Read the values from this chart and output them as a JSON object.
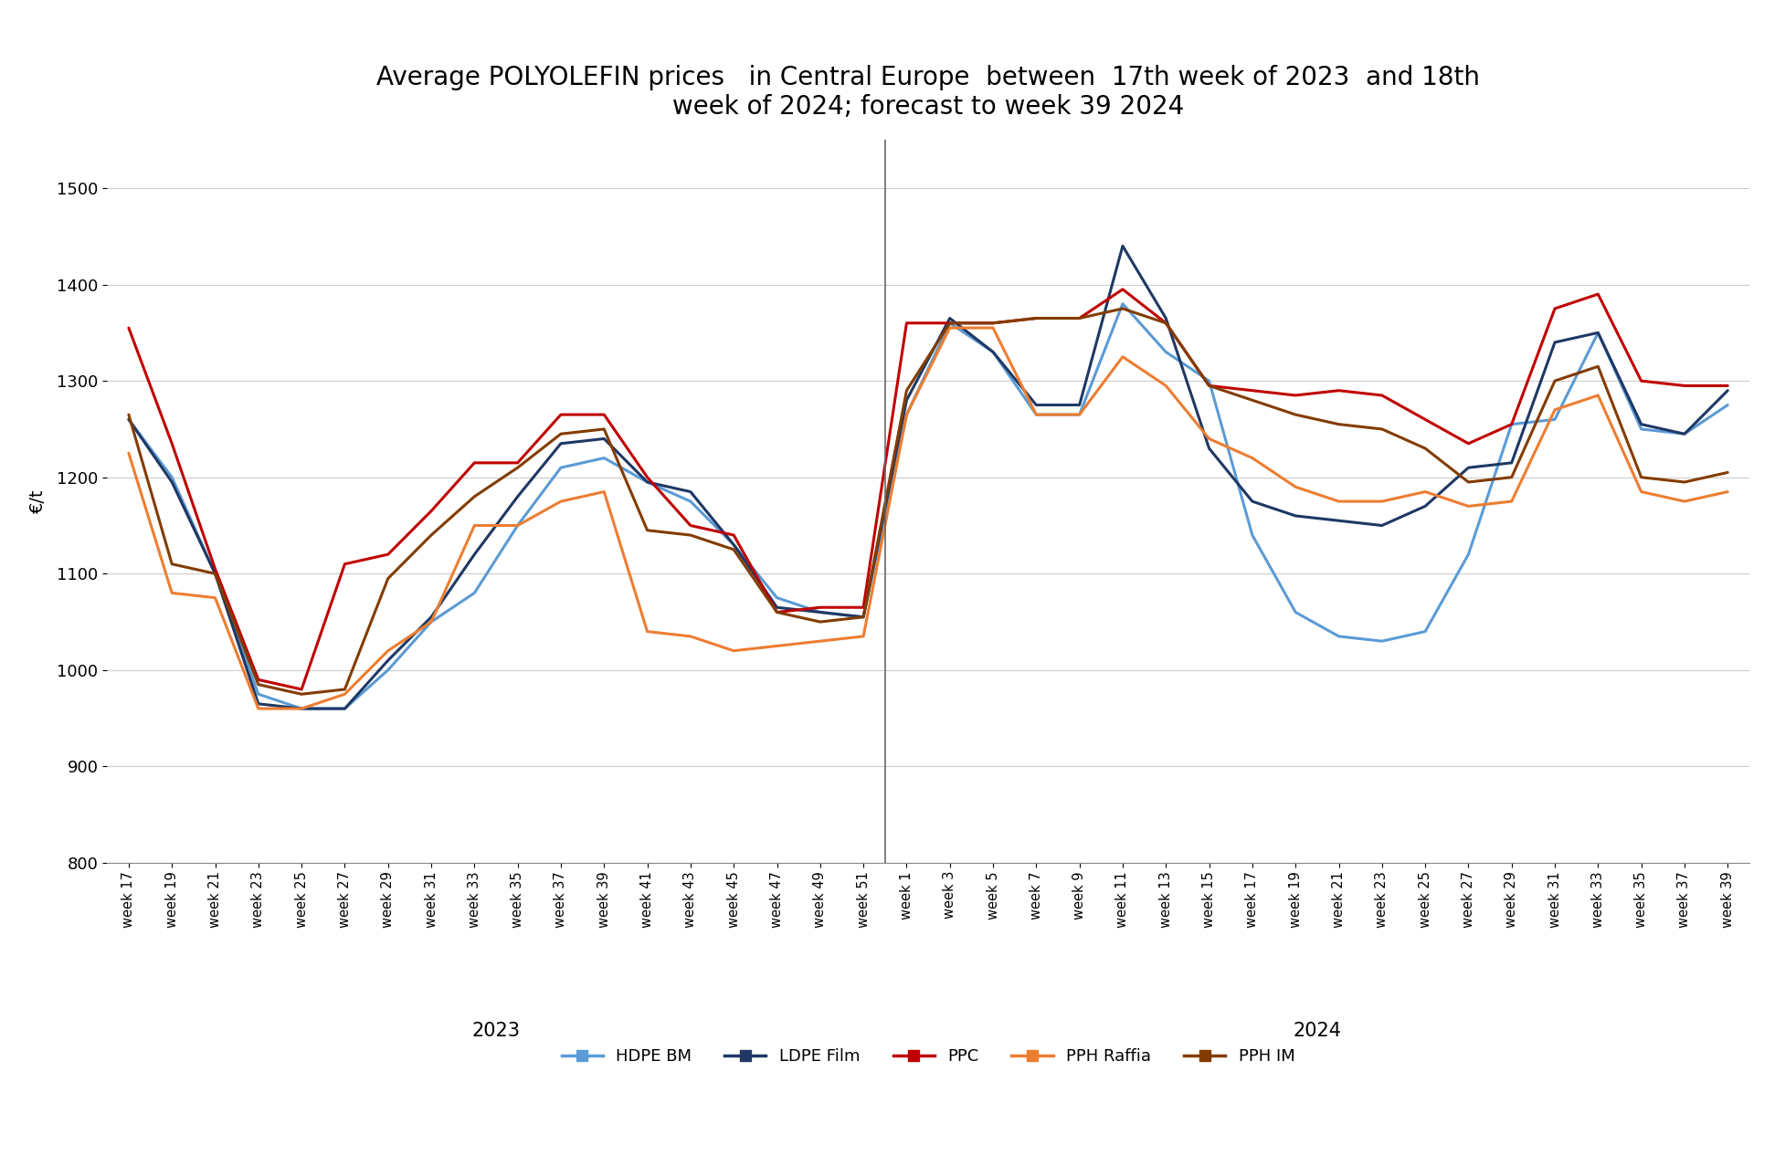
{
  "title": "Average POLYOLEFIN prices   in Central Europe  between  17th week of 2023  and 18th\nweek of 2024; forecast to week 39 2024",
  "ylabel": "€/t",
  "ylim": [
    800,
    1550
  ],
  "yticks": [
    800,
    900,
    1000,
    1100,
    1200,
    1300,
    1400,
    1500
  ],
  "background_color": "#ffffff",
  "grid_color": "#cccccc",
  "x_labels_2023": [
    "week 17",
    "week 19",
    "week 21",
    "week 23",
    "week 25",
    "week 27",
    "week 29",
    "week 31",
    "week 33",
    "week 35",
    "week 37",
    "week 39",
    "week 41",
    "week 43",
    "week 45",
    "week 47",
    "week 49",
    "week 51"
  ],
  "x_labels_2024": [
    "week 1",
    "week 3",
    "week 5",
    "week 7",
    "week 9",
    "week 11",
    "week 13",
    "week 15",
    "week 17",
    "week 19",
    "week 21",
    "week 23",
    "week 25",
    "week 27",
    "week 29",
    "week 31",
    "week 33",
    "week 35",
    "week 37",
    "week 39"
  ],
  "legend_entries": [
    "HDPE BM",
    "LDPE Film",
    "PPC",
    "PPH Raffia",
    "PPH IM"
  ],
  "series": {
    "HDPE BM": {
      "color": "#5B9BD5",
      "linewidth": 2.2,
      "values": [
        1260,
        1200,
        1100,
        975,
        960,
        960,
        1000,
        1050,
        1080,
        1150,
        1210,
        1220,
        1195,
        1175,
        1130,
        1075,
        1060,
        1055,
        1265,
        1360,
        1330,
        1265,
        1265,
        1380,
        1330,
        1300,
        1140,
        1060,
        1035,
        1030,
        1040,
        1120,
        1255,
        1260,
        1350,
        1250,
        1245,
        1275
      ]
    },
    "LDPE Film": {
      "color": "#1F3864",
      "linewidth": 2.2,
      "values": [
        1260,
        1195,
        1100,
        965,
        960,
        960,
        1010,
        1055,
        1120,
        1180,
        1235,
        1240,
        1195,
        1185,
        1130,
        1065,
        1060,
        1055,
        1280,
        1365,
        1330,
        1275,
        1275,
        1440,
        1365,
        1230,
        1175,
        1160,
        1155,
        1150,
        1170,
        1210,
        1215,
        1340,
        1350,
        1255,
        1245,
        1290
      ]
    },
    "PPC": {
      "color": "#C00000",
      "linewidth": 2.2,
      "values": [
        1355,
        1235,
        1105,
        990,
        980,
        1110,
        1120,
        1165,
        1215,
        1215,
        1265,
        1265,
        1200,
        1150,
        1140,
        1060,
        1065,
        1065,
        1360,
        1360,
        1360,
        1365,
        1365,
        1395,
        1360,
        1295,
        1290,
        1285,
        1290,
        1285,
        1260,
        1235,
        1255,
        1375,
        1390,
        1300,
        1295,
        1295
      ]
    },
    "PPH Raffia": {
      "color": "#ED7D31",
      "linewidth": 2.2,
      "values": [
        1225,
        1080,
        1075,
        960,
        960,
        975,
        1020,
        1050,
        1150,
        1150,
        1175,
        1185,
        1040,
        1035,
        1020,
        1025,
        1030,
        1035,
        1265,
        1355,
        1355,
        1265,
        1265,
        1325,
        1295,
        1240,
        1220,
        1190,
        1175,
        1175,
        1185,
        1170,
        1175,
        1270,
        1285,
        1185,
        1175,
        1185
      ]
    },
    "PPH IM": {
      "color": "#833C00",
      "linewidth": 2.2,
      "values": [
        1265,
        1110,
        1100,
        985,
        975,
        980,
        1095,
        1140,
        1180,
        1210,
        1245,
        1250,
        1145,
        1140,
        1125,
        1060,
        1050,
        1055,
        1290,
        1360,
        1360,
        1365,
        1365,
        1375,
        1360,
        1295,
        1280,
        1265,
        1255,
        1250,
        1230,
        1195,
        1200,
        1300,
        1315,
        1200,
        1195,
        1205
      ]
    }
  }
}
